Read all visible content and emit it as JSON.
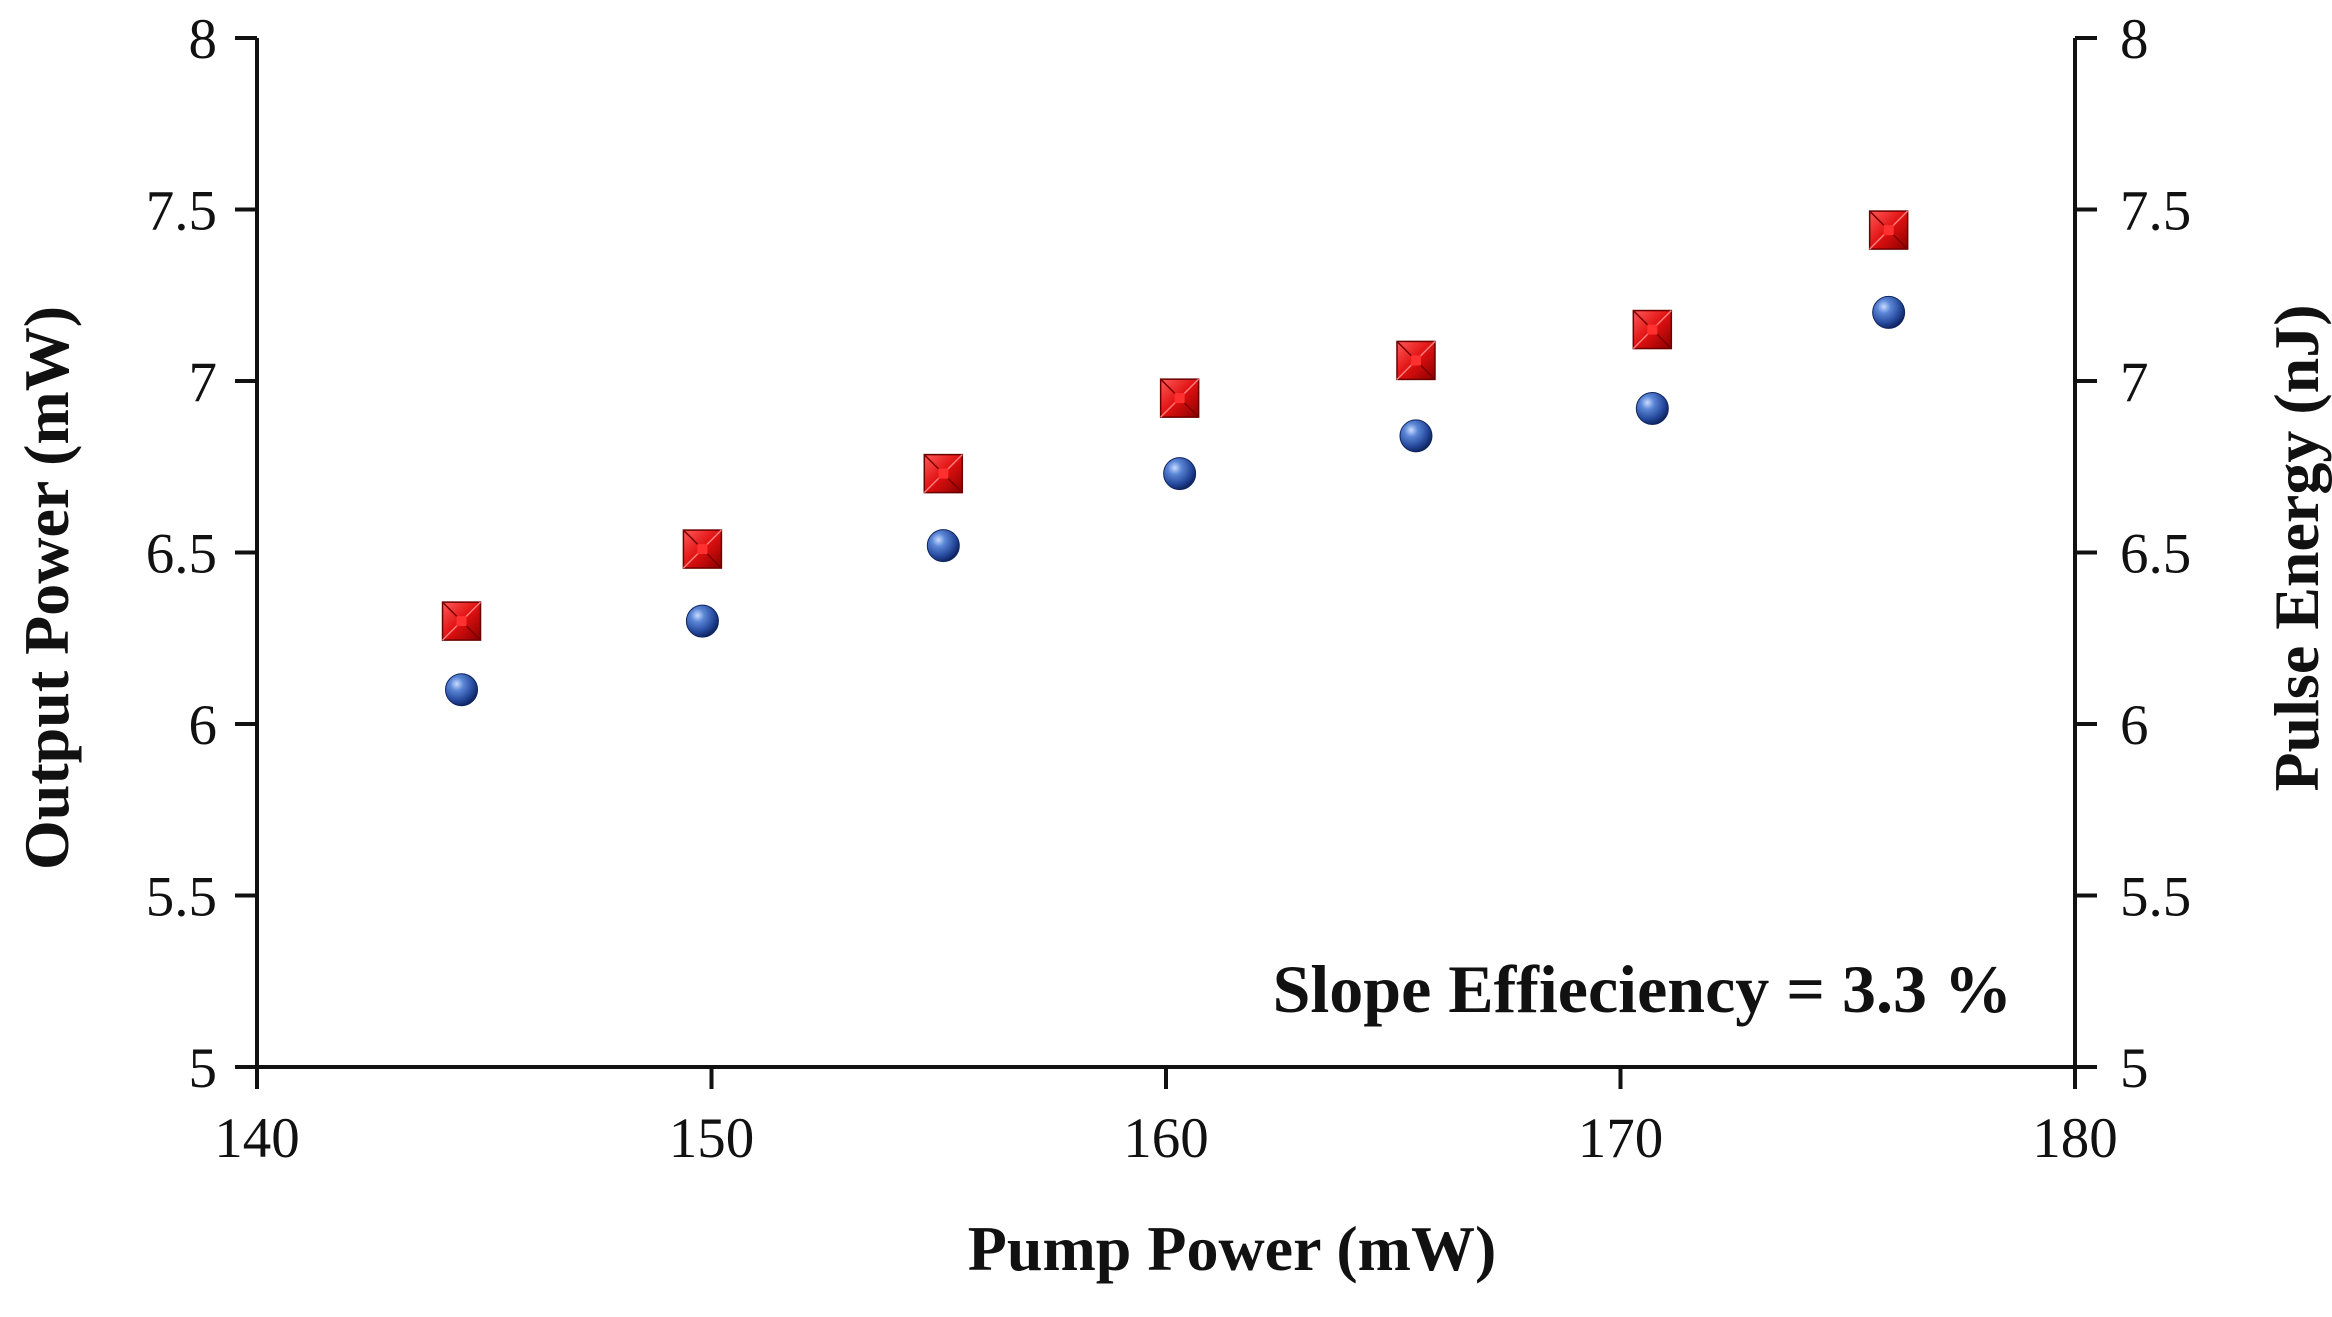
{
  "chart_data": {
    "type": "scatter",
    "x": [
      144.5,
      149.8,
      155.1,
      160.3,
      165.5,
      170.7,
      175.9
    ],
    "series": [
      {
        "name": "Output Power",
        "axis": "left",
        "marker": "sphere",
        "color": "#2f5aa8",
        "values": [
          6.1,
          6.3,
          6.52,
          6.73,
          6.84,
          6.92,
          7.2
        ]
      },
      {
        "name": "Pulse Energy",
        "axis": "right",
        "marker": "square",
        "color": "#e01010",
        "values": [
          6.3,
          6.51,
          6.73,
          6.95,
          7.06,
          7.15,
          7.44
        ]
      }
    ],
    "xlabel": "Pump Power (mW)",
    "ylabel": "Output Power (mW)",
    "y2label": "Pulse Energy (nJ)",
    "xlim": [
      140,
      180
    ],
    "ylim": [
      5,
      8
    ],
    "y2lim": [
      5,
      8
    ],
    "xticks": [
      140,
      150,
      160,
      170,
      180
    ],
    "yticks": [
      5,
      5.5,
      6,
      6.5,
      7,
      7.5,
      8
    ],
    "y2ticks": [
      5,
      5.5,
      6,
      6.5,
      7,
      7.5,
      8
    ],
    "xtick_labels": [
      "140",
      "150",
      "160",
      "170",
      "180"
    ],
    "ytick_labels": [
      "5",
      "5.5",
      "6",
      "6.5",
      "7",
      "7.5",
      "8"
    ],
    "y2tick_labels": [
      "5",
      "5.5",
      "6",
      "6.5",
      "7",
      "7.5",
      "8"
    ],
    "annotation": "Slope Effieciency = 3.3 %",
    "grid": false,
    "legend": "none"
  }
}
